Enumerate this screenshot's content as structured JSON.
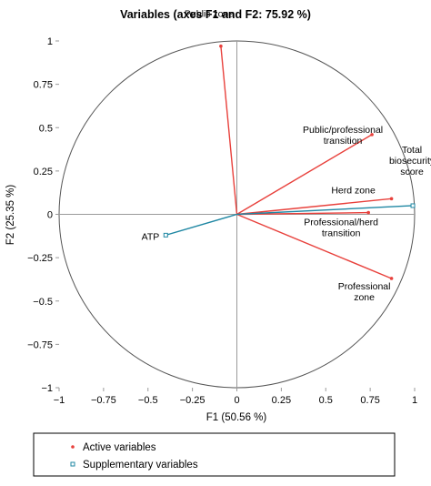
{
  "chart_data": {
    "type": "scatter",
    "title": "Variables (axes F1 and F2: 75.92 %)",
    "xlabel": "F1 (50.56 %)",
    "ylabel": "F2 (25.35 %)",
    "xlim": [
      -1,
      1
    ],
    "ylim": [
      -1,
      1
    ],
    "x_ticks": [
      "−1",
      "−0.75",
      "−0.5",
      "−0.25",
      "0",
      "0.25",
      "0.5",
      "0.75",
      "1"
    ],
    "y_ticks": [
      "1",
      "0.75",
      "0.5",
      "0.25",
      "0",
      "−0.25",
      "−0.5",
      "−0.75",
      "−1"
    ],
    "x_tick_values": [
      -1,
      -0.75,
      -0.5,
      -0.25,
      0,
      0.25,
      0.5,
      0.75,
      1
    ],
    "y_tick_values": [
      1,
      0.75,
      0.5,
      0.25,
      0,
      -0.25,
      -0.5,
      -0.75,
      -1
    ],
    "unit_circle": true,
    "grid": false,
    "legend_position": "bottom-left",
    "series": [
      {
        "name": "Active variables",
        "color": "#e8413c",
        "marker": "filled-dot",
        "points": [
          {
            "label": [
              "Public zone"
            ],
            "x": -0.09,
            "y": 0.97
          },
          {
            "label": [
              "Public/professional",
              "transition"
            ],
            "x": 0.76,
            "y": 0.46
          },
          {
            "label": [
              "Herd zone"
            ],
            "x": 0.87,
            "y": 0.09
          },
          {
            "label": [
              "Professional/herd",
              "transition"
            ],
            "x": 0.74,
            "y": 0.01
          },
          {
            "label": [
              "Professional",
              "zone"
            ],
            "x": 0.87,
            "y": -0.37
          }
        ]
      },
      {
        "name": "Supplementary variables",
        "color": "#1f87a3",
        "marker": "open-square",
        "points": [
          {
            "label": [
              "Total",
              "biosecurity",
              "score"
            ],
            "x": 0.99,
            "y": 0.05
          },
          {
            "label": [
              "ATP"
            ],
            "x": -0.4,
            "y": -0.12
          }
        ]
      }
    ]
  }
}
